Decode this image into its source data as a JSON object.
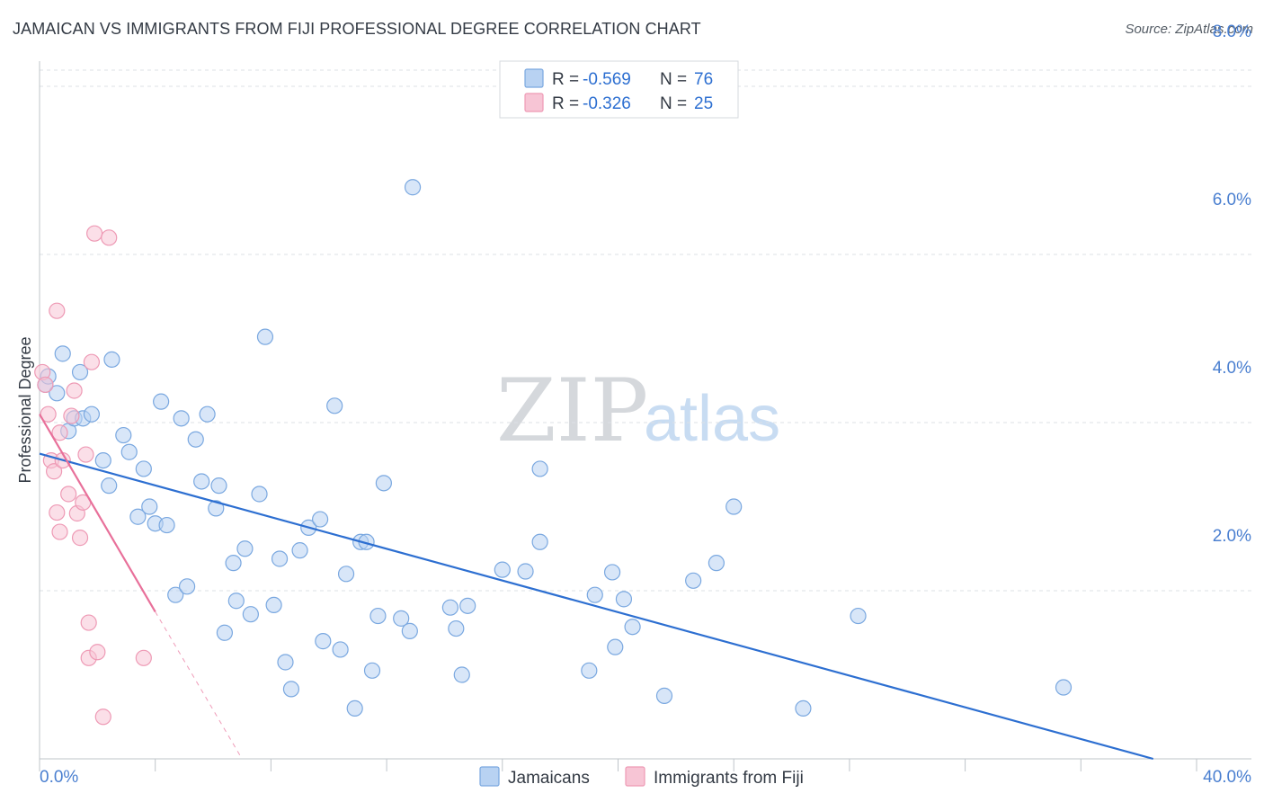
{
  "title": "JAMAICAN VS IMMIGRANTS FROM FIJI PROFESSIONAL DEGREE CORRELATION CHART",
  "source": "Source: ZipAtlas.com",
  "watermark": {
    "zip": "ZIP",
    "atlas": "atlas"
  },
  "colors": {
    "blue_fill": "#b8d2f2",
    "blue_stroke": "#7aa8e0",
    "blue_line": "#2d6fd1",
    "pink_fill": "#f7c5d5",
    "pink_stroke": "#ee9ab5",
    "pink_line": "#e8709a",
    "grid": "#dde1e6",
    "tick_text": "#4a7fd0"
  },
  "legend_top": [
    {
      "r_label": "R = ",
      "r_value": "-0.569",
      "n_label": "N = ",
      "n_value": "76"
    },
    {
      "r_label": "R = ",
      "r_value": "-0.326",
      "n_label": "N = ",
      "n_value": "25"
    }
  ],
  "chart_data": {
    "type": "scatter",
    "title": "JAMAICAN VS IMMIGRANTS FROM FIJI PROFESSIONAL DEGREE CORRELATION CHART",
    "xlabel": "",
    "ylabel": "Professional Degree",
    "xlim": [
      0,
      40
    ],
    "ylim": [
      0,
      8.3
    ],
    "x_tick_labels": [
      "0.0%",
      "40.0%"
    ],
    "y_ticks": [
      2,
      4,
      6,
      8
    ],
    "y_tick_labels": [
      "2.0%",
      "4.0%",
      "6.0%",
      "8.0%"
    ],
    "grid": true,
    "legend": [
      "Jamaicans",
      "Immigrants from Fiji"
    ],
    "series": [
      {
        "name": "Jamaicans",
        "r": -0.569,
        "n": 76,
        "trend": {
          "x0": 0,
          "y0": 3.63,
          "x1": 38.5,
          "y1": 0.0
        },
        "points": [
          [
            0.2,
            4.45
          ],
          [
            0.3,
            4.55
          ],
          [
            0.6,
            4.35
          ],
          [
            0.8,
            4.82
          ],
          [
            1.0,
            3.9
          ],
          [
            1.2,
            4.05
          ],
          [
            1.4,
            4.6
          ],
          [
            1.5,
            4.05
          ],
          [
            1.8,
            4.1
          ],
          [
            2.2,
            3.55
          ],
          [
            2.4,
            3.25
          ],
          [
            2.5,
            4.75
          ],
          [
            2.9,
            3.85
          ],
          [
            3.1,
            3.65
          ],
          [
            3.4,
            2.88
          ],
          [
            3.6,
            3.45
          ],
          [
            3.8,
            3.0
          ],
          [
            4.0,
            2.8
          ],
          [
            4.2,
            4.25
          ],
          [
            4.4,
            2.78
          ],
          [
            4.7,
            1.95
          ],
          [
            4.9,
            4.05
          ],
          [
            5.1,
            2.05
          ],
          [
            5.4,
            3.8
          ],
          [
            5.6,
            3.3
          ],
          [
            5.8,
            4.1
          ],
          [
            6.1,
            2.98
          ],
          [
            6.2,
            3.25
          ],
          [
            6.4,
            1.5
          ],
          [
            6.7,
            2.33
          ],
          [
            6.8,
            1.88
          ],
          [
            7.1,
            2.5
          ],
          [
            7.3,
            1.72
          ],
          [
            7.6,
            3.15
          ],
          [
            7.8,
            5.02
          ],
          [
            8.1,
            1.83
          ],
          [
            8.3,
            2.38
          ],
          [
            8.5,
            1.15
          ],
          [
            8.7,
            0.83
          ],
          [
            9.0,
            2.48
          ],
          [
            9.3,
            2.75
          ],
          [
            9.7,
            2.85
          ],
          [
            9.8,
            1.4
          ],
          [
            10.2,
            4.2
          ],
          [
            10.4,
            1.3
          ],
          [
            10.6,
            2.2
          ],
          [
            10.9,
            0.6
          ],
          [
            11.1,
            2.58
          ],
          [
            11.3,
            2.58
          ],
          [
            11.5,
            1.05
          ],
          [
            11.7,
            1.7
          ],
          [
            11.9,
            3.28
          ],
          [
            12.5,
            1.67
          ],
          [
            12.8,
            1.52
          ],
          [
            12.9,
            6.8
          ],
          [
            14.2,
            1.8
          ],
          [
            14.4,
            1.55
          ],
          [
            14.6,
            1.0
          ],
          [
            14.8,
            1.82
          ],
          [
            16.0,
            2.25
          ],
          [
            16.8,
            2.23
          ],
          [
            17.3,
            2.58
          ],
          [
            17.3,
            3.45
          ],
          [
            19.0,
            1.05
          ],
          [
            19.2,
            1.95
          ],
          [
            19.8,
            2.22
          ],
          [
            19.9,
            1.33
          ],
          [
            20.2,
            1.9
          ],
          [
            20.5,
            1.57
          ],
          [
            21.6,
            0.75
          ],
          [
            22.6,
            2.12
          ],
          [
            23.4,
            2.33
          ],
          [
            24.0,
            3.0
          ],
          [
            26.4,
            0.6
          ],
          [
            28.3,
            1.7
          ],
          [
            35.4,
            0.85
          ]
        ]
      },
      {
        "name": "Immigrants from Fiji",
        "r": -0.326,
        "n": 25,
        "trend": {
          "x0": 0,
          "y0": 4.1,
          "x1": 4.0,
          "y1": 1.75,
          "dash_x1": 7.0,
          "dash_y1": 0.0
        },
        "points": [
          [
            0.1,
            4.6
          ],
          [
            0.2,
            4.45
          ],
          [
            0.3,
            4.1
          ],
          [
            0.4,
            3.55
          ],
          [
            0.5,
            3.42
          ],
          [
            0.6,
            2.93
          ],
          [
            0.6,
            5.33
          ],
          [
            0.7,
            3.88
          ],
          [
            0.7,
            2.7
          ],
          [
            0.8,
            3.55
          ],
          [
            1.0,
            3.15
          ],
          [
            1.1,
            4.08
          ],
          [
            1.2,
            4.38
          ],
          [
            1.3,
            2.92
          ],
          [
            1.4,
            2.63
          ],
          [
            1.5,
            3.05
          ],
          [
            1.6,
            3.62
          ],
          [
            1.7,
            1.62
          ],
          [
            1.7,
            1.2
          ],
          [
            1.8,
            4.72
          ],
          [
            1.9,
            6.25
          ],
          [
            2.0,
            1.27
          ],
          [
            2.2,
            0.5
          ],
          [
            2.4,
            6.2
          ],
          [
            3.6,
            1.2
          ]
        ]
      }
    ]
  }
}
